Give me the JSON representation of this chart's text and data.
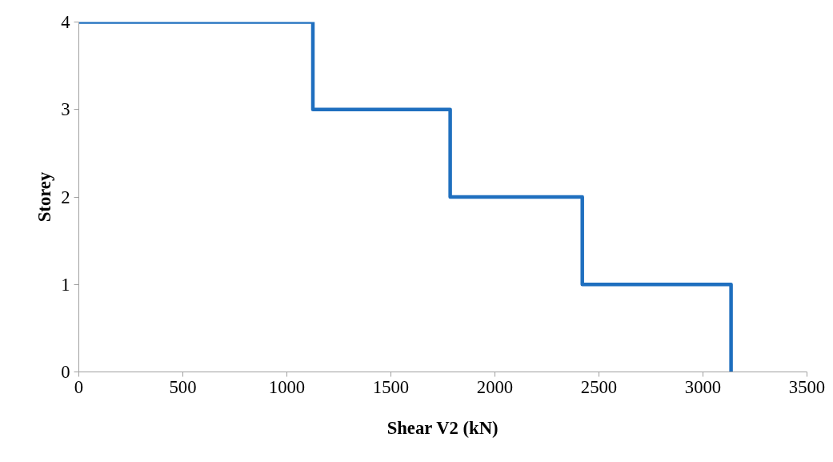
{
  "chart_data": {
    "type": "line",
    "xlabel": "Shear V2 (kN)",
    "ylabel": "Storey",
    "series": [
      {
        "color": "#1f6fbf",
        "x": [
          0,
          1125,
          1125,
          1785,
          1785,
          2420,
          2420,
          3135,
          3135
        ],
        "values": [
          4,
          4,
          3,
          3,
          2,
          2,
          1,
          1,
          0
        ]
      }
    ],
    "xlim": [
      0,
      3500
    ],
    "xticks": [
      0,
      500,
      1000,
      1500,
      2000,
      2500,
      3000,
      3500
    ],
    "ylim": [
      0,
      4
    ],
    "yticks": [
      0,
      1,
      2,
      3,
      4
    ],
    "grid": false,
    "marker": "none",
    "line_style": "solid"
  }
}
